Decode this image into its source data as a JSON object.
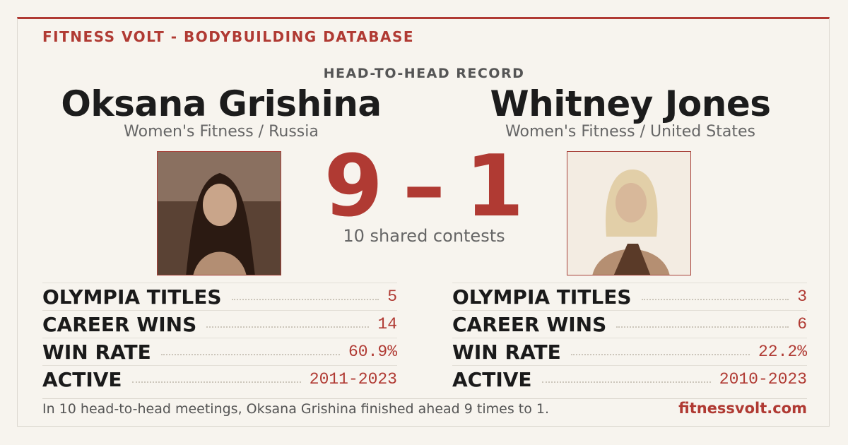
{
  "header": {
    "brand": "FITNESS VOLT - BODYBUILDING DATABASE",
    "section": "HEAD-TO-HEAD RECORD"
  },
  "athletes": [
    {
      "name": "Oksana Grishina",
      "subtitle": "Women's Fitness / Russia",
      "stats": [
        {
          "label": "OLYMPIA TITLES",
          "value": "5"
        },
        {
          "label": "CAREER WINS",
          "value": "14"
        },
        {
          "label": "WIN RATE",
          "value": "60.9%"
        },
        {
          "label": "ACTIVE",
          "value": "2011-2023"
        }
      ]
    },
    {
      "name": "Whitney Jones",
      "subtitle": "Women's Fitness / United States",
      "stats": [
        {
          "label": "OLYMPIA TITLES",
          "value": "3"
        },
        {
          "label": "CAREER WINS",
          "value": "6"
        },
        {
          "label": "WIN RATE",
          "value": "22.2%"
        },
        {
          "label": "ACTIVE",
          "value": "2010-2023"
        }
      ]
    }
  ],
  "score": {
    "left": "9",
    "separator": "–",
    "right": "1",
    "caption": "10 shared contests"
  },
  "footer": {
    "summary": "In 10 head-to-head meetings, Oksana Grishina finished ahead 9 times to 1.",
    "site": "fitnessvolt.com"
  }
}
